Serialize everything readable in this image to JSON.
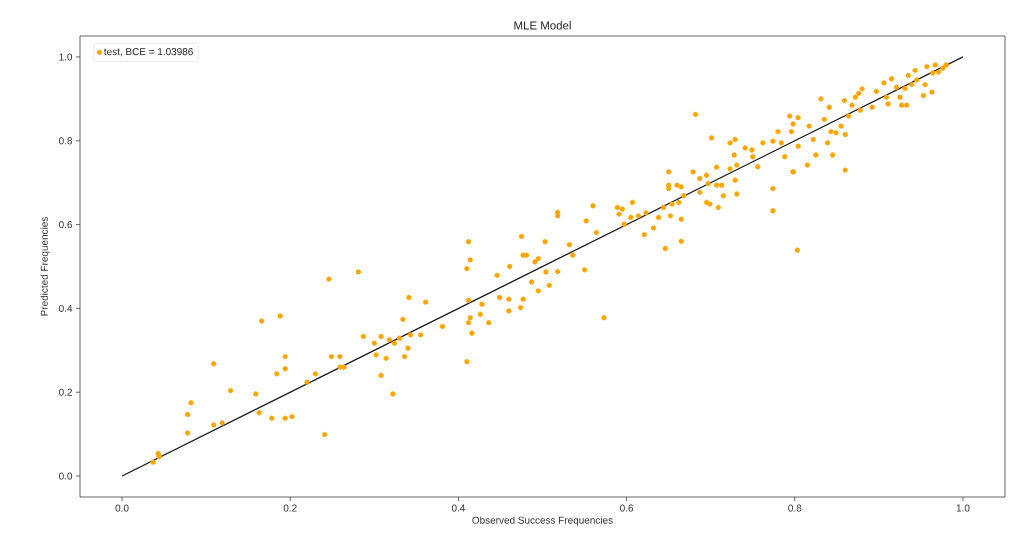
{
  "chart_data": {
    "type": "scatter",
    "title": "MLE Model",
    "xlabel": "Observed Success Frequencies",
    "ylabel": "Predicted Frequencies",
    "xlim": [
      -0.05,
      1.05
    ],
    "ylim": [
      -0.05,
      1.05
    ],
    "xticks": [
      {
        "value": 0,
        "label": "0.0"
      },
      {
        "value": 0.2,
        "label": "0.2"
      },
      {
        "value": 0.4,
        "label": "0.4"
      },
      {
        "value": 0.6,
        "label": "0.6"
      },
      {
        "value": 0.8,
        "label": "0.8"
      },
      {
        "value": 1,
        "label": "1.0"
      }
    ],
    "yticks": [
      {
        "value": 0,
        "label": "0.0"
      },
      {
        "value": 0.2,
        "label": "0.2"
      },
      {
        "value": 0.4,
        "label": "0.4"
      },
      {
        "value": 0.6,
        "label": "0.6"
      },
      {
        "value": 0.8,
        "label": "0.8"
      },
      {
        "value": 1,
        "label": "1.0"
      }
    ],
    "legend": "top left",
    "marker": "circle",
    "series": [
      {
        "name": "test, BCE = 1.03986",
        "color": "#ffa500",
        "x": [
          0.037,
          0.043,
          0.044,
          0.078,
          0.078,
          0.082,
          0.109,
          0.109,
          0.119,
          0.129,
          0.159,
          0.163,
          0.166,
          0.178,
          0.184,
          0.188,
          0.194,
          0.194,
          0.194,
          0.202,
          0.22,
          0.23,
          0.241,
          0.246,
          0.249,
          0.259,
          0.259,
          0.264,
          0.281,
          0.287,
          0.3,
          0.302,
          0.308,
          0.308,
          0.314,
          0.318,
          0.322,
          0.324,
          0.33,
          0.334,
          0.336,
          0.34,
          0.341,
          0.343,
          0.355,
          0.361,
          0.381,
          0.41,
          0.41,
          0.412,
          0.414,
          0.412,
          0.412,
          0.414,
          0.416,
          0.426,
          0.428,
          0.436,
          0.446,
          0.449,
          0.46,
          0.46,
          0.461,
          0.474,
          0.475,
          0.477,
          0.477,
          0.481,
          0.487,
          0.491,
          0.495,
          0.495,
          0.503,
          0.504,
          0.508,
          0.518,
          0.518,
          0.518,
          0.532,
          0.536,
          0.55,
          0.552,
          0.56,
          0.564,
          0.573,
          0.589,
          0.591,
          0.595,
          0.597,
          0.605,
          0.607,
          0.614,
          0.621,
          0.623,
          0.632,
          0.638,
          0.644,
          0.646,
          0.65,
          0.65,
          0.65,
          0.652,
          0.654,
          0.66,
          0.662,
          0.665,
          0.665,
          0.665,
          0.668,
          0.679,
          0.682,
          0.687,
          0.687,
          0.695,
          0.695,
          0.697,
          0.699,
          0.701,
          0.707,
          0.707,
          0.709,
          0.713,
          0.715,
          0.723,
          0.723,
          0.728,
          0.729,
          0.729,
          0.731,
          0.731,
          0.741,
          0.749,
          0.75,
          0.756,
          0.762,
          0.774,
          0.774,
          0.774,
          0.78,
          0.784,
          0.788,
          0.794,
          0.796,
          0.798,
          0.798,
          0.798,
          0.803,
          0.804,
          0.804,
          0.815,
          0.817,
          0.822,
          0.825,
          0.831,
          0.835,
          0.839,
          0.841,
          0.843,
          0.845,
          0.849,
          0.855,
          0.859,
          0.86,
          0.86,
          0.864,
          0.868,
          0.872,
          0.876,
          0.878,
          0.88,
          0.892,
          0.897,
          0.906,
          0.909,
          0.911,
          0.915,
          0.921,
          0.925,
          0.927,
          0.931,
          0.933,
          0.935,
          0.939,
          0.943,
          0.945,
          0.953,
          0.955,
          0.957,
          0.963,
          0.964,
          0.967,
          0.971,
          0.976,
          0.98
        ],
        "values": [
          0.033,
          0.054,
          0.046,
          0.103,
          0.147,
          0.175,
          0.268,
          0.122,
          0.127,
          0.204,
          0.196,
          0.151,
          0.37,
          0.138,
          0.244,
          0.382,
          0.285,
          0.256,
          0.138,
          0.142,
          0.224,
          0.244,
          0.099,
          0.47,
          0.285,
          0.285,
          0.26,
          0.26,
          0.487,
          0.333,
          0.317,
          0.289,
          0.333,
          0.24,
          0.281,
          0.325,
          0.196,
          0.317,
          0.329,
          0.374,
          0.285,
          0.305,
          0.426,
          0.337,
          0.337,
          0.415,
          0.357,
          0.273,
          0.495,
          0.559,
          0.516,
          0.419,
          0.366,
          0.378,
          0.341,
          0.386,
          0.41,
          0.366,
          0.479,
          0.426,
          0.422,
          0.394,
          0.5,
          0.402,
          0.572,
          0.422,
          0.527,
          0.527,
          0.463,
          0.511,
          0.519,
          0.442,
          0.559,
          0.487,
          0.455,
          0.488,
          0.629,
          0.621,
          0.552,
          0.527,
          0.492,
          0.609,
          0.645,
          0.581,
          0.378,
          0.641,
          0.625,
          0.637,
          0.601,
          0.617,
          0.653,
          0.621,
          0.576,
          0.628,
          0.592,
          0.617,
          0.641,
          0.543,
          0.726,
          0.694,
          0.686,
          0.621,
          0.649,
          0.694,
          0.653,
          0.69,
          0.613,
          0.56,
          0.669,
          0.726,
          0.863,
          0.71,
          0.677,
          0.718,
          0.653,
          0.698,
          0.649,
          0.807,
          0.694,
          0.737,
          0.641,
          0.694,
          0.669,
          0.795,
          0.733,
          0.766,
          0.803,
          0.706,
          0.673,
          0.742,
          0.783,
          0.778,
          0.762,
          0.738,
          0.795,
          0.799,
          0.686,
          0.633,
          0.822,
          0.795,
          0.762,
          0.859,
          0.822,
          0.84,
          0.726,
          0.726,
          0.539,
          0.855,
          0.787,
          0.742,
          0.835,
          0.803,
          0.766,
          0.9,
          0.851,
          0.795,
          0.88,
          0.822,
          0.766,
          0.819,
          0.835,
          0.896,
          0.815,
          0.73,
          0.859,
          0.885,
          0.904,
          0.913,
          0.873,
          0.924,
          0.88,
          0.918,
          0.938,
          0.904,
          0.888,
          0.948,
          0.928,
          0.904,
          0.885,
          0.925,
          0.885,
          0.956,
          0.934,
          0.968,
          0.945,
          0.908,
          0.934,
          0.977,
          0.916,
          0.962,
          0.981,
          0.964,
          0.973,
          0.981
        ]
      },
      {
        "type": "line",
        "marker": "none",
        "color": "#1a1a1a",
        "x": [
          0,
          1
        ],
        "values": [
          0,
          1
        ]
      }
    ]
  }
}
